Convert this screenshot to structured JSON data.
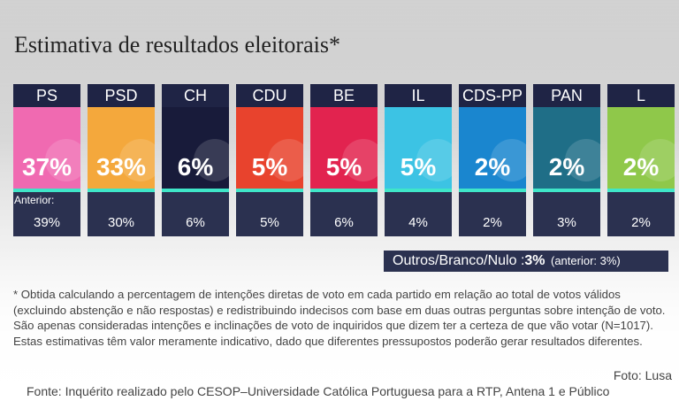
{
  "title": "Estimativa de resultados eleitorais*",
  "anterior_label": "Anterior:",
  "colors": {
    "header_bg": "#1f2445",
    "card_bg": "#2b3150",
    "accent_stripe": "#3fe6c8"
  },
  "chart_data": {
    "type": "table",
    "title": "Estimativa de resultados eleitorais*",
    "categories": [
      "PS",
      "PSD",
      "CH",
      "CDU",
      "BE",
      "IL",
      "CDS-PP",
      "PAN",
      "L"
    ],
    "series": [
      {
        "name": "",
        "values": [
          37,
          33,
          6,
          5,
          5,
          5,
          2,
          2,
          2
        ]
      },
      {
        "name": "Anterior:",
        "values": [
          39,
          30,
          6,
          5,
          6,
          4,
          2,
          3,
          2
        ]
      }
    ],
    "items": [
      {
        "party": "PS",
        "value": "37%",
        "previous": "39%",
        "color": "#f06ab1"
      },
      {
        "party": "PSD",
        "value": "33%",
        "previous": "30%",
        "color": "#f4a83c"
      },
      {
        "party": "CH",
        "value": "6%",
        "previous": "6%",
        "color": "#181b3a"
      },
      {
        "party": "CDU",
        "value": "5%",
        "previous": "5%",
        "color": "#e8432d"
      },
      {
        "party": "BE",
        "value": "5%",
        "previous": "6%",
        "color": "#e2234f"
      },
      {
        "party": "IL",
        "value": "5%",
        "previous": "4%",
        "color": "#3cc3e4"
      },
      {
        "party": "CDS-PP",
        "value": "2%",
        "previous": "2%",
        "color": "#1a86cf"
      },
      {
        "party": "PAN",
        "value": "2%",
        "previous": "3%",
        "color": "#1f6e87"
      },
      {
        "party": "L",
        "value": "2%",
        "previous": "2%",
        "color": "#8fc84a"
      }
    ]
  },
  "outros": {
    "label": "Outros/Branco/Nulo : ",
    "value": "3%",
    "previous": "(anterior: 3%)"
  },
  "note": "* Obtida calculando a percentagem de intenções diretas de voto em cada partido em relação ao total de votos válidos (excluindo abstenção e não respostas) e redistribuindo indecisos com base em duas outras perguntas sobre intenção de voto. São apenas consideradas intenções e inclinações de voto de inquiridos que dizem ter a certeza de que vão votar (N=1017). Estas estimativas têm valor meramente indicativo, dado que diferentes pressupostos poderão gerar resultados diferentes.",
  "foto": "Foto: Lusa",
  "fonte": "Fonte: Inquérito realizado pelo CESOP–Universidade Católica Portuguesa para a RTP, Antena 1 e Público"
}
